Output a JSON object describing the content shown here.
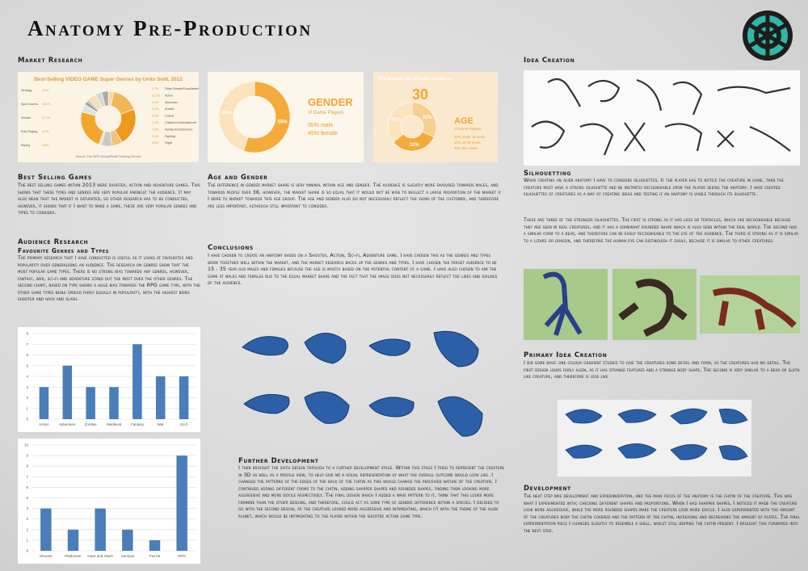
{
  "title": "Anatomy Pre-Production",
  "market_research": {
    "heading": "Market Research",
    "genre_chart": {
      "type": "pie",
      "title": "Best-Selling VIDEO GAME Super Genres by Units Sold, 2012",
      "categories": [
        "Strategy",
        "Sport Games",
        "Shooter",
        "Role-Playing",
        "Racing",
        "Other Games/Compilations",
        "Action",
        "Adventure",
        "Arcade",
        "Casual",
        "Children's Entertainment",
        "Family Entertainment",
        "Fighting",
        "Flight"
      ],
      "values": [
        3.2,
        15.3,
        21.2,
        6.0,
        5.8,
        1.7,
        22.3,
        4.3,
        0.2,
        2.0,
        1.2,
        4.9,
        3.9,
        3.6
      ],
      "value_labels": [
        "3.2%",
        "15.3%",
        "21.2%",
        "6.0%",
        "5.8%",
        "1.7%",
        "22.3%",
        "4.3%",
        "0.2%",
        "2.0%",
        "1.2%",
        "4.9%",
        "3.9%",
        "3.6%"
      ],
      "colors": [
        "#f6d9a8",
        "#f2b655",
        "#ec9a1e",
        "#f0c27a",
        "#c9c9c9",
        "#dddddd",
        "#f4a52b",
        "#e0e0e0",
        "#bdbdbd",
        "#9e9e9e",
        "#b5b5b5",
        "#f7e0b8",
        "#d7d7d7",
        "#a8a8a8"
      ],
      "source": "Source: The NPD Group/Retail Tracking Service"
    },
    "gender_chart": {
      "type": "pie",
      "title": "GENDER",
      "subtitle": "of Game Players",
      "values": [
        55,
        45
      ],
      "value_labels": [
        "55%",
        "45%"
      ],
      "colors": [
        "#f4ab3c",
        "#fbe3bd"
      ],
      "legend": [
        "55% male",
        "45% female"
      ]
    },
    "age_chart": {
      "type": "pie",
      "heading": "The average age of game players is:",
      "average": "30",
      "title": "AGE",
      "subtitle": "of Game Players",
      "values": [
        32,
        32,
        36
      ],
      "value_labels": [
        "32%",
        "32%",
        "36%"
      ],
      "colors": [
        "#f7cf8e",
        "#f4ab3c",
        "#fbe3bd"
      ],
      "legend": [
        "32% under 18 years",
        "32% 18-35 years",
        "36% 36+ years"
      ]
    }
  },
  "best_selling": {
    "heading": "Best Selling Games",
    "text": "The best selling games within 2013 were shooter, action and adventure games. This shows that these types and genres are very popular amongst the audience. It may also mean that the market is saturated, so other research has to be conducted, however, it shows that if I want to make a game, these are very popular genres and types to consider."
  },
  "audience": {
    "heading": "Audience Research",
    "subheading": "Favourite Genres and Types",
    "text": "The primary research that I have conducted is useful as it looks at favourites and popularity over generalising an audience. The research on genres show that the most popular game types. There is no strong bias towards any genres, however, fantasy, war, sci-fi and adventure stand out the most over the other genres. The second chart, based on type shows a huge bias towards the RPG game type, with the other game types being spread fairly equally in popularity, with the highest being shooter and hack and slash."
  },
  "charts": [
    {
      "type": "bar",
      "categories": [
        "Action",
        "Adventure",
        "Zombie",
        "Medieval",
        "Fantasy",
        "War",
        "Sci fi"
      ],
      "values": [
        3,
        5,
        3,
        3,
        7,
        4,
        4
      ],
      "color": "#4a7ebb",
      "ylim": [
        0,
        8
      ],
      "yticks": [
        0,
        1,
        2,
        3,
        4,
        5,
        6,
        7,
        8
      ],
      "grid": true
    },
    {
      "type": "bar",
      "categories": [
        "Shooter",
        "Platformer",
        "Hack and Slash",
        "Survival",
        "Puzzle",
        "RPG"
      ],
      "values": [
        4,
        2,
        4,
        2,
        1,
        9
      ],
      "color": "#4a7ebb",
      "ylim": [
        0,
        10
      ],
      "yticks": [
        0,
        1,
        2,
        3,
        4,
        5,
        6,
        7,
        8,
        9,
        10
      ],
      "grid": true
    }
  ],
  "age_gender": {
    "heading": "Age and Gender",
    "text": "The difference in gender market share is very minimal within age and gender. The audience is slightly more favoured towards males, and towards people over 36, however, the market share is so equal that it would not be wise to neglect a large proportion of the market if I were to market towards this age group. The age and gender also do not necessarily reflect the views of the customer, and therefore are less important, although still important to consider."
  },
  "conclusions": {
    "heading": "Conclusions",
    "text": "I have chosen to create an anatomy based on a Shooter, Action, Sci-fi, Adventure game. I have chosen this as the genres and types work together well within the market, and the market research backs up the genres and types. I have chosen the target audience to be 15 - 35 year old males and females because the age is mostly based on the potential content of a game. I have also chosen to aim the game at males and females due to the equal market share and the fact that the image does not necessarily reflect the likes and dislikes of the audience."
  },
  "further_development": {
    "heading": "Further Development",
    "text": "I then brought the sixth design through to a further development stage. Within this stage I tried to represent the creature in 3D as well as a profile view, to help give me a visual representation of what the overall outcome would look like. I changed the patterns of the edges of the back of the chitin as this would change the perceived nature of the creature. I continued adding different forms to the chitin, adding sharper shapes and rounded shapes, finding them looking more aggressive and more docile respectively. The final design which I added a wave pattern to it, think that this looks more feminine than the other designs, and therefore, could act as some type of gender difference within a species. I decided to go with the second design, as the creature looked more aggressive and intimidating, which fit with the theme of the alien planet, which would be intimidating to the player within the shooter action game type."
  },
  "idea_creation": {
    "heading": "Idea Creation"
  },
  "silhouetting": {
    "heading": "Silhouetting",
    "text": "When creating an alien anatomy I have to consider silhouettes. If the player has to notice the creature in game, then the creature must have a strong silhouette and be instantly recognisable upon the player seeing the anatomy. I have created silhouettes of creatures as a way of creating ideas and testing if an anatomy is viable through its silhouette.",
    "text2": "These are three of the stronger silhouettes. The first is strong as it has legs or tentacles, which are recognisable because they are seen in real creatures, and it has a somewhat rounded shape which is also seen within the real world. The second had a similar form to a bear, and therefore can be easily recognisable to the eye of the audience. The third is strong as it is similar to a lizard or dragon, and therefore the human eye can distinguish it easily, because it is similar to other creatures."
  },
  "primary_idea": {
    "heading": "Primary Idea Creation",
    "text": "I did some basic one colour gradient studies to give the creatures some detail and form, as the creatures had no detail. The first design looks fairly alien, as it has strange features and a strange body shape. The second is very similar to a bear or sloth like creature, and therefore is less like"
  },
  "development": {
    "heading": "Development",
    "text": "The next step was development and experimentation, and the main focus of the anatomy is the chitin of the creature. This was what I experimented with; checking different shapes and proportions. When I had sharper shapes, I noticed it made the creature look more aggressive, while the more rounded shapes make the creature look more docile. I also experimented with the amount of the creatures body the chitin covered and the pattern of the chitin, increasing and decreasing the amount of plates. The final experimentation piece I changed slightly to resemble a shell, whilst still keeping the chitin present. I brought this forwards into the next step."
  }
}
